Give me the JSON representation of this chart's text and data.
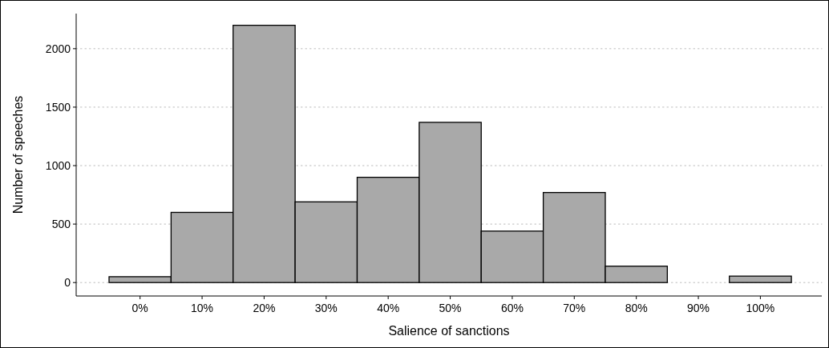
{
  "chart_data": {
    "type": "histogram",
    "xlabel": "Salience of sanctions",
    "ylabel": "Number of speeches",
    "bins": [
      -5,
      5,
      15,
      25,
      35,
      45,
      55,
      65,
      75,
      85,
      95,
      105
    ],
    "values": [
      50,
      600,
      2200,
      690,
      900,
      1370,
      440,
      770,
      140,
      0,
      55
    ],
    "color": "#a9a9a9",
    "xlim": [
      -10.3,
      109.9
    ],
    "xticks": [
      {
        "value": 0,
        "label": "0%"
      },
      {
        "value": 10,
        "label": "10%"
      },
      {
        "value": 20,
        "label": "20%"
      },
      {
        "value": 30,
        "label": "30%"
      },
      {
        "value": 40,
        "label": "40%"
      },
      {
        "value": 50,
        "label": "50%"
      },
      {
        "value": 60,
        "label": "60%"
      },
      {
        "value": 70,
        "label": "70%"
      },
      {
        "value": 80,
        "label": "80%"
      },
      {
        "value": 90,
        "label": "90%"
      },
      {
        "value": 100,
        "label": "100%"
      }
    ],
    "ylim": [
      -115,
      2300
    ],
    "yticks": [
      0,
      500,
      1000,
      1500,
      2000
    ],
    "grid": "y"
  }
}
